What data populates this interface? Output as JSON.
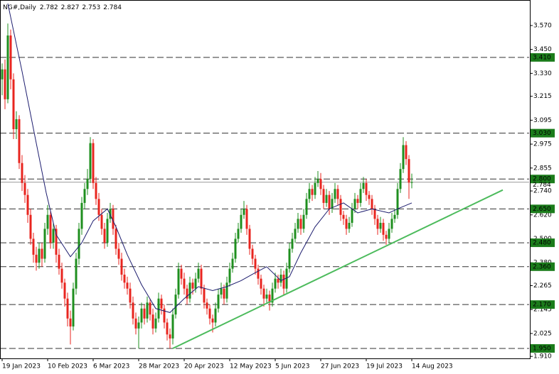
{
  "chart_data": {
    "type": "candlestick",
    "title": "NG#,Daily",
    "open": [
      3.3,
      3.35,
      3.2,
      3.52,
      3.3,
      3.05,
      3.1,
      2.88,
      2.78,
      2.72,
      2.62,
      2.5,
      2.42,
      2.38,
      2.45,
      2.4,
      2.55,
      2.62,
      2.48,
      2.55,
      2.42,
      2.35,
      2.28,
      2.2,
      2.1,
      2.06,
      2.25,
      2.4,
      2.55,
      2.68,
      2.75,
      2.8,
      2.98,
      2.78,
      2.7,
      2.62,
      2.55,
      2.48,
      2.6,
      2.65,
      2.55,
      2.45,
      2.4,
      2.32,
      2.28,
      2.25,
      2.18,
      2.1,
      2.05,
      2.08,
      2.15,
      2.1,
      2.18,
      2.12,
      2.05,
      2.1,
      2.2,
      2.15,
      2.08,
      2.02,
      2.0,
      2.12,
      2.22,
      2.35,
      2.3,
      2.25,
      2.2,
      2.28,
      2.25,
      2.3,
      2.35,
      2.25,
      2.18,
      2.15,
      2.1,
      2.08,
      2.15,
      2.22,
      2.25,
      2.2,
      2.28,
      2.35,
      2.4,
      2.5,
      2.55,
      2.62,
      2.65,
      2.55,
      2.45,
      2.4,
      2.35,
      2.3,
      2.25,
      2.2,
      2.22,
      2.18,
      2.25,
      2.3,
      2.28,
      2.32,
      2.25,
      2.35,
      2.45,
      2.5,
      2.55,
      2.6,
      2.55,
      2.62,
      2.7,
      2.75,
      2.72,
      2.78,
      2.8,
      2.75,
      2.68,
      2.72,
      2.65,
      2.7,
      2.75,
      2.7,
      2.62,
      2.6,
      2.55,
      2.58,
      2.65,
      2.7,
      2.68,
      2.75,
      2.78,
      2.72,
      2.7,
      2.65,
      2.6,
      2.55,
      2.58,
      2.52,
      2.5,
      2.55,
      2.6,
      2.62,
      2.75,
      2.85,
      2.97,
      2.9,
      2.782
    ],
    "high": [
      3.38,
      3.4,
      3.58,
      3.55,
      3.33,
      3.14,
      3.12,
      2.92,
      2.82,
      2.75,
      2.65,
      2.53,
      2.46,
      2.48,
      2.48,
      2.58,
      2.67,
      2.64,
      2.58,
      2.57,
      2.45,
      2.38,
      2.3,
      2.23,
      2.14,
      2.28,
      2.43,
      2.58,
      2.71,
      2.78,
      2.85,
      3.01,
      3.0,
      2.81,
      2.73,
      2.65,
      2.58,
      2.63,
      2.68,
      2.67,
      2.57,
      2.48,
      2.43,
      2.35,
      2.31,
      2.28,
      2.21,
      2.13,
      2.11,
      2.18,
      2.17,
      2.21,
      2.2,
      2.15,
      2.13,
      2.23,
      2.22,
      2.17,
      2.1,
      2.05,
      2.15,
      2.25,
      2.38,
      2.37,
      2.33,
      2.27,
      2.31,
      2.3,
      2.33,
      2.38,
      2.37,
      2.27,
      2.2,
      2.17,
      2.12,
      2.18,
      2.25,
      2.28,
      2.27,
      2.31,
      2.38,
      2.43,
      2.53,
      2.58,
      2.65,
      2.69,
      2.67,
      2.57,
      2.47,
      2.42,
      2.37,
      2.32,
      2.27,
      2.25,
      2.24,
      2.28,
      2.33,
      2.32,
      2.35,
      2.34,
      2.38,
      2.48,
      2.53,
      2.58,
      2.63,
      2.62,
      2.65,
      2.73,
      2.78,
      2.77,
      2.81,
      2.84,
      2.83,
      2.77,
      2.75,
      2.74,
      2.73,
      2.78,
      2.77,
      2.72,
      2.64,
      2.62,
      2.61,
      2.68,
      2.73,
      2.72,
      2.78,
      2.81,
      2.8,
      2.74,
      2.72,
      2.67,
      2.62,
      2.61,
      2.6,
      2.54,
      2.58,
      2.63,
      2.65,
      2.78,
      2.88,
      3.01,
      2.99,
      2.92,
      2.827
    ],
    "low": [
      3.22,
      3.15,
      3.18,
      3.25,
      3.0,
      3.0,
      2.85,
      2.74,
      2.68,
      2.58,
      2.47,
      2.38,
      2.34,
      2.35,
      2.36,
      2.38,
      2.52,
      2.45,
      2.45,
      2.38,
      2.32,
      2.25,
      2.16,
      2.06,
      1.97,
      2.04,
      2.22,
      2.37,
      2.52,
      2.65,
      2.72,
      2.78,
      2.75,
      2.67,
      2.59,
      2.52,
      2.45,
      2.46,
      2.58,
      2.52,
      2.42,
      2.37,
      2.29,
      2.25,
      2.22,
      2.15,
      2.07,
      2.02,
      1.95,
      2.05,
      2.07,
      2.08,
      2.09,
      2.02,
      2.03,
      2.08,
      2.12,
      2.05,
      1.99,
      1.95,
      1.97,
      2.1,
      2.2,
      2.27,
      2.22,
      2.17,
      2.18,
      2.22,
      2.23,
      2.28,
      2.22,
      2.15,
      2.12,
      2.07,
      2.03,
      2.06,
      2.13,
      2.2,
      2.17,
      2.18,
      2.26,
      2.33,
      2.38,
      2.48,
      2.53,
      2.6,
      2.52,
      2.42,
      2.37,
      2.32,
      2.27,
      2.22,
      2.16,
      2.18,
      2.14,
      2.16,
      2.23,
      2.25,
      2.26,
      2.22,
      2.23,
      2.33,
      2.43,
      2.48,
      2.53,
      2.52,
      2.53,
      2.6,
      2.68,
      2.69,
      2.7,
      2.76,
      2.72,
      2.65,
      2.66,
      2.62,
      2.63,
      2.68,
      2.67,
      2.59,
      2.57,
      2.52,
      2.53,
      2.56,
      2.63,
      2.65,
      2.66,
      2.73,
      2.69,
      2.67,
      2.62,
      2.57,
      2.52,
      2.53,
      2.49,
      2.47,
      2.48,
      2.53,
      2.58,
      2.6,
      2.73,
      2.83,
      2.87,
      2.7,
      2.753
    ],
    "close": [
      3.35,
      3.2,
      3.52,
      3.3,
      3.05,
      3.1,
      2.88,
      2.78,
      2.72,
      2.62,
      2.5,
      2.42,
      2.38,
      2.45,
      2.4,
      2.55,
      2.62,
      2.48,
      2.55,
      2.42,
      2.35,
      2.28,
      2.2,
      2.1,
      2.06,
      2.25,
      2.4,
      2.55,
      2.68,
      2.75,
      2.8,
      2.98,
      2.78,
      2.7,
      2.62,
      2.55,
      2.48,
      2.6,
      2.65,
      2.55,
      2.45,
      2.4,
      2.32,
      2.28,
      2.25,
      2.18,
      2.1,
      2.05,
      2.08,
      2.15,
      2.1,
      2.18,
      2.12,
      2.05,
      2.1,
      2.2,
      2.15,
      2.08,
      2.02,
      2.0,
      2.12,
      2.22,
      2.35,
      2.3,
      2.25,
      2.2,
      2.28,
      2.25,
      2.3,
      2.35,
      2.25,
      2.18,
      2.15,
      2.1,
      2.08,
      2.15,
      2.22,
      2.25,
      2.2,
      2.28,
      2.35,
      2.4,
      2.5,
      2.55,
      2.62,
      2.65,
      2.55,
      2.45,
      2.4,
      2.35,
      2.3,
      2.25,
      2.2,
      2.22,
      2.18,
      2.25,
      2.3,
      2.28,
      2.32,
      2.25,
      2.35,
      2.45,
      2.5,
      2.55,
      2.6,
      2.55,
      2.62,
      2.7,
      2.75,
      2.72,
      2.78,
      2.8,
      2.75,
      2.68,
      2.72,
      2.65,
      2.7,
      2.75,
      2.7,
      2.62,
      2.6,
      2.55,
      2.58,
      2.65,
      2.7,
      2.68,
      2.75,
      2.78,
      2.72,
      2.7,
      2.65,
      2.6,
      2.55,
      2.58,
      2.52,
      2.5,
      2.55,
      2.6,
      2.62,
      2.75,
      2.85,
      2.97,
      2.9,
      2.782,
      2.784
    ],
    "up_color": "#1f8f1f",
    "down_color": "#e8251f",
    "ma": {
      "color": "#1c1c6e",
      "x": [
        2,
        7,
        12,
        15.5,
        19,
        24,
        28,
        32,
        37,
        40,
        44,
        49,
        54,
        59,
        64,
        69,
        74,
        79,
        84,
        89,
        93,
        98,
        101,
        105,
        110,
        115,
        120,
        125,
        130,
        136,
        139,
        144
      ],
      "values": [
        3.68,
        3.34,
        2.98,
        2.73,
        2.52,
        2.41,
        2.48,
        2.59,
        2.65,
        2.56,
        2.42,
        2.27,
        2.15,
        2.13,
        2.2,
        2.26,
        2.24,
        2.26,
        2.29,
        2.33,
        2.36,
        2.29,
        2.31,
        2.43,
        2.56,
        2.65,
        2.68,
        2.63,
        2.65,
        2.63,
        2.65,
        2.68
      ]
    },
    "trendline": {
      "color": "#4cbb5c",
      "x": [
        60,
        176
      ],
      "values": [
        1.95,
        2.745
      ]
    },
    "level_color": "#1b7c1b",
    "levels": [
      {
        "value": 3.41,
        "label": "3.410"
      },
      {
        "value": 3.03,
        "label": "3.030"
      },
      {
        "value": 2.8,
        "label": "2.800"
      },
      {
        "value": 2.65,
        "label": "2.650"
      },
      {
        "value": 2.48,
        "label": "2.480"
      },
      {
        "value": 2.36,
        "label": "2.360"
      },
      {
        "value": 2.17,
        "label": "2.170"
      },
      {
        "value": 1.95,
        "label": "1.950"
      }
    ],
    "xlim": [
      -0.75,
      185.5
    ],
    "xticks": [
      {
        "value": 0,
        "label": "19 Jan 2023"
      },
      {
        "value": 16,
        "label": "10 Feb 2023"
      },
      {
        "value": 32,
        "label": "6 Mar 2023"
      },
      {
        "value": 48,
        "label": "28 Mar 2023"
      },
      {
        "value": 64,
        "label": "20 Apr 2023"
      },
      {
        "value": 80,
        "label": "12 May 2023"
      },
      {
        "value": 96,
        "label": "5 Jun 2023"
      },
      {
        "value": 112,
        "label": "27 Jun 2023"
      },
      {
        "value": 128,
        "label": "19 Jul 2023"
      },
      {
        "value": 144,
        "label": "14 Aug 2023"
      }
    ],
    "ylim": [
      1.9,
      3.698
    ],
    "yticks": [
      {
        "value": 3.57,
        "label": "3.570"
      },
      {
        "value": 3.45,
        "label": "3.450"
      },
      {
        "value": 3.33,
        "label": "3.330"
      },
      3.215,
      3.095,
      2.975,
      2.855,
      {
        "value": 2.74,
        "label": "2.740"
      },
      {
        "value": 2.62,
        "label": "2.620"
      },
      {
        "value": 2.5,
        "label": "2.500"
      },
      {
        "value": 2.38,
        "label": "2.380"
      },
      2.265,
      2.145,
      2.025,
      {
        "value": 1.91,
        "label": "1.910"
      }
    ]
  }
}
